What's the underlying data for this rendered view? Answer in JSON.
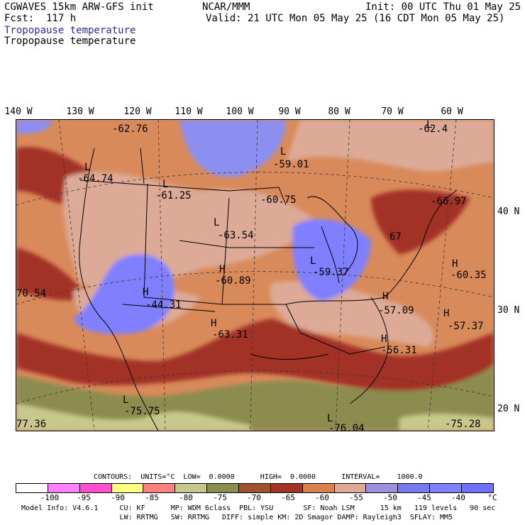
{
  "header": {
    "model": "CGWAVES 15km ARW-GFS init",
    "fcst": "Fcst:  117 h",
    "field_blue": "Tropopause temperature",
    "field": "Tropopause temperature",
    "org": "NCAR/MMM",
    "init": "Init: 00 UTC Thu 01 May 25",
    "valid": "Valid: 21 UTC Mon 05 May 25 (16 CDT Mon 05 May 25)"
  },
  "longitudes": [
    "140 W",
    "130 W",
    "120 W",
    "110 W",
    "100 W",
    "90 W",
    "80 W",
    "70 W",
    "60 W"
  ],
  "latitudes": [
    "40 N",
    "30 N",
    "20 N"
  ],
  "map_labels": [
    {
      "text": "-62.76"
    },
    {
      "text": "L"
    },
    {
      "text": "-64.74"
    },
    {
      "text": "L"
    },
    {
      "text": "-61.25"
    },
    {
      "text": "L"
    },
    {
      "text": "-59.01"
    },
    {
      "text": "-60.75"
    },
    {
      "text": "L"
    },
    {
      "text": "-62.4"
    },
    {
      "text": "-66.97"
    },
    {
      "text": "L"
    },
    {
      "text": "-63.54"
    },
    {
      "text": "67"
    },
    {
      "text": "H"
    },
    {
      "text": "-60.89"
    },
    {
      "text": "L"
    },
    {
      "text": "-59.37"
    },
    {
      "text": "H"
    },
    {
      "text": "-60.35"
    },
    {
      "text": "H"
    },
    {
      "text": "-44.31"
    },
    {
      "text": "70.54"
    },
    {
      "text": "H"
    },
    {
      "text": "-57.09"
    },
    {
      "text": "H"
    },
    {
      "text": "-57.37"
    },
    {
      "text": "H"
    },
    {
      "text": "-63.31"
    },
    {
      "text": "H"
    },
    {
      "text": "-56.31"
    },
    {
      "text": "L"
    },
    {
      "text": "-75.75"
    },
    {
      "text": "77.36"
    },
    {
      "text": "L"
    },
    {
      "text": "-76.04"
    },
    {
      "text": "-75.28"
    }
  ],
  "contours": {
    "text": "CONTOURS:  UNITS=°C  LOW=  0.0000      HIGH=  0.0000      INTERVAL=    1000.0"
  },
  "colorbar": {
    "colors": [
      "#ffffff",
      "#ff80ff",
      "#ff50d0",
      "#ffff80",
      "#ff8080",
      "#c8c88c",
      "#8c8c50",
      "#a0522d",
      "#a33326",
      "#d9804f",
      "#dcaa96",
      "#9b8fe0",
      "#7a78f0",
      "#8080ff",
      "#7070ff"
    ],
    "ticks": [
      "-100",
      "-95",
      "-90",
      "-85",
      "-80",
      "-75",
      "-70",
      "-65",
      "-60",
      "-55",
      "-50",
      "-45",
      "-40",
      "°C"
    ]
  },
  "footer": {
    "line1": "Model Info: V4.6.1     CU: KF      MP: WDM 6class  PBL: YSU       SF: Noah LSM      15 km   119 levels   90 sec",
    "line2": "                       LW: RRTMG   SW: RRTMG   DIFF: simple KM: 2D Smagor DAMP: Rayleigh3  SFLAY: MM5"
  }
}
